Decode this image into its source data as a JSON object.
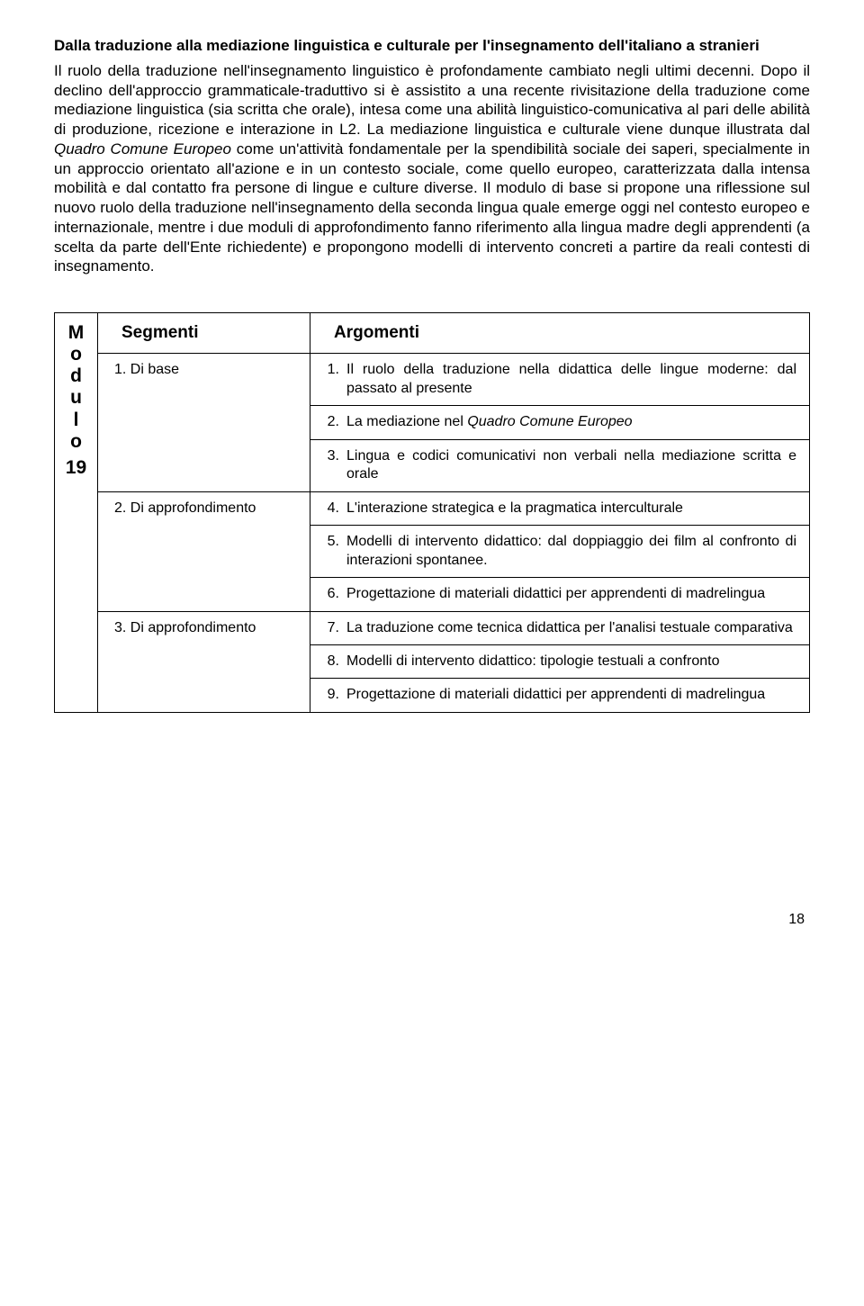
{
  "title": "Dalla traduzione alla mediazione linguistica e culturale per l'insegnamento dell'italiano a stranieri",
  "body_html": "Il ruolo della traduzione nell'insegnamento linguistico è profondamente cambiato negli ultimi decenni. Dopo il declino dell'approccio grammaticale-traduttivo si è assistito a una recente rivisitazione della traduzione come mediazione linguistica (sia scritta che orale), intesa come una abilità linguistico-comunicativa al pari delle abilità di produzione, ricezione e interazione in L2. La mediazione linguistica e culturale viene dunque illustrata dal <span class=\"italic\">Quadro Comune Europeo</span> come un'attività fondamentale per la spendibilità sociale dei saperi, specialmente in un approccio orientato all'azione e in un contesto sociale, come quello europeo, caratterizzata dalla intensa mobilità e dal contatto fra persone di lingue e culture diverse. Il modulo di base si propone una riflessione sul nuovo ruolo della traduzione nell'insegnamento della seconda lingua quale emerge oggi nel contesto europeo e internazionale, mentre i due moduli di approfondimento fanno riferimento alla lingua madre degli apprendenti (a scelta da parte dell'Ente richiedente) e propongono modelli di intervento concreti a partire da reali contesti di insegnamento.",
  "sidebar": {
    "letters": [
      "M",
      "o",
      "d",
      "u",
      "l",
      "o"
    ],
    "number": "19"
  },
  "headers": {
    "segmenti": "Segmenti",
    "argomenti": "Argomenti"
  },
  "segments": {
    "s1": "1. Di base",
    "s2": "2. Di approfondimento",
    "s3": "3. Di approfondimento"
  },
  "args": {
    "a1": {
      "n": "1.",
      "t": "Il ruolo della traduzione nella didattica delle lingue moderne: dal passato al presente"
    },
    "a2": {
      "n": "2.",
      "t_html": "La mediazione nel <span class=\"italic\">Quadro Comune Europeo</span>"
    },
    "a3": {
      "n": "3.",
      "t": "Lingua e codici comunicativi non verbali nella mediazione scritta e orale"
    },
    "a4": {
      "n": "4.",
      "t": "L'interazione strategica e la pragmatica interculturale"
    },
    "a5": {
      "n": "5.",
      "t": "Modelli di intervento didattico: dal doppiaggio dei film al confronto di interazioni spontanee."
    },
    "a6": {
      "n": "6.",
      "t": "Progettazione di materiali didattici per apprendenti di madrelingua"
    },
    "a7": {
      "n": "7.",
      "t": "La traduzione come tecnica didattica per l'analisi testuale comparativa"
    },
    "a8": {
      "n": "8.",
      "t": "Modelli di intervento didattico: tipologie testuali a confronto"
    },
    "a9": {
      "n": "9.",
      "t": "Progettazione di materiali didattici per apprendenti di madrelingua"
    }
  },
  "page_number": "18"
}
